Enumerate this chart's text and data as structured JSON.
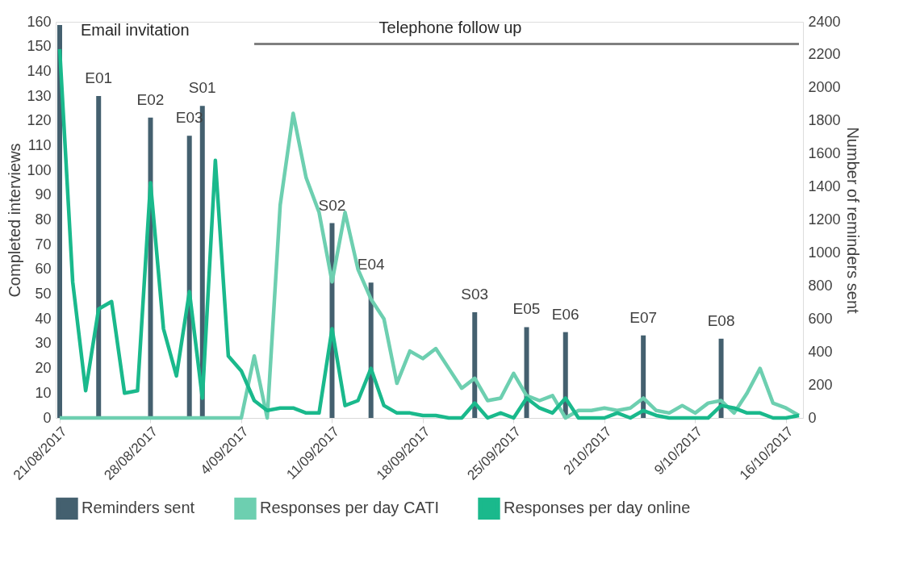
{
  "chart_data": {
    "type": "line",
    "x": [
      "2017-08-21",
      "2017-08-22",
      "2017-08-23",
      "2017-08-24",
      "2017-08-25",
      "2017-08-26",
      "2017-08-27",
      "2017-08-28",
      "2017-08-29",
      "2017-08-30",
      "2017-08-31",
      "2017-09-01",
      "2017-09-02",
      "2017-09-03",
      "2017-09-04",
      "2017-09-05",
      "2017-09-06",
      "2017-09-07",
      "2017-09-08",
      "2017-09-09",
      "2017-09-10",
      "2017-09-11",
      "2017-09-12",
      "2017-09-13",
      "2017-09-14",
      "2017-09-15",
      "2017-09-16",
      "2017-09-17",
      "2017-09-18",
      "2017-09-19",
      "2017-09-20",
      "2017-09-21",
      "2017-09-22",
      "2017-09-23",
      "2017-09-24",
      "2017-09-25",
      "2017-09-26",
      "2017-09-27",
      "2017-09-28",
      "2017-09-29",
      "2017-09-30",
      "2017-10-01",
      "2017-10-02",
      "2017-10-03",
      "2017-10-04",
      "2017-10-05",
      "2017-10-06",
      "2017-10-07",
      "2017-10-08",
      "2017-10-09",
      "2017-10-10",
      "2017-10-11",
      "2017-10-12",
      "2017-10-13",
      "2017-10-14",
      "2017-10-15",
      "2017-10-16",
      "2017-10-17"
    ],
    "series": [
      {
        "name": "Reminders sent",
        "type": "bar",
        "axis": "y2",
        "color": "#44606f",
        "values": [
          2380,
          null,
          null,
          1950,
          null,
          null,
          null,
          1820,
          null,
          null,
          1710,
          1890,
          null,
          null,
          null,
          null,
          null,
          null,
          null,
          null,
          null,
          1180,
          null,
          null,
          820,
          null,
          null,
          null,
          null,
          null,
          null,
          null,
          640,
          null,
          null,
          null,
          550,
          null,
          null,
          520,
          null,
          null,
          null,
          null,
          null,
          500,
          null,
          null,
          null,
          null,
          null,
          480,
          null,
          null,
          null,
          null,
          null,
          null
        ],
        "value_labels": [
          null,
          null,
          null,
          "E01",
          null,
          null,
          null,
          "E02",
          null,
          null,
          "E03",
          "S01",
          null,
          null,
          null,
          null,
          null,
          null,
          null,
          null,
          null,
          "S02",
          null,
          null,
          "E04",
          null,
          null,
          null,
          null,
          null,
          null,
          null,
          "S03",
          null,
          null,
          null,
          "E05",
          null,
          null,
          "E06",
          null,
          null,
          null,
          null,
          null,
          "E07",
          null,
          null,
          null,
          null,
          null,
          "E08",
          null,
          null,
          null,
          null,
          null,
          null
        ]
      },
      {
        "name": "Responses per day CATI",
        "type": "line",
        "color": "#6dcfb0",
        "values": [
          0,
          0,
          0,
          0,
          0,
          0,
          0,
          0,
          0,
          0,
          0,
          0,
          0,
          0,
          0,
          25,
          0,
          86,
          123,
          97,
          83,
          55,
          83,
          60,
          48,
          40,
          14,
          27,
          24,
          28,
          20,
          12,
          16,
          7,
          8,
          18,
          9,
          7,
          9,
          0,
          3,
          3,
          4,
          3,
          4,
          8,
          3,
          2,
          5,
          2,
          6,
          7,
          2,
          10,
          20,
          6,
          4,
          1
        ]
      },
      {
        "name": "Responses per day online",
        "type": "line",
        "color": "#1ab98c",
        "values": [
          149,
          55,
          11,
          44,
          47,
          10,
          11,
          95,
          36,
          17,
          51,
          8,
          104,
          25,
          19,
          7,
          3,
          4,
          4,
          2,
          2,
          36,
          5,
          7,
          20,
          5,
          2,
          2,
          1,
          1,
          0,
          0,
          6,
          0,
          2,
          0,
          8,
          4,
          2,
          8,
          0,
          0,
          0,
          2,
          0,
          3,
          1,
          0,
          0,
          0,
          0,
          5,
          4,
          2,
          2,
          0,
          0,
          1
        ]
      },
      {
        "color": "#7f7f7f",
        "x": [
          "2017-09-05",
          "2017-10-17"
        ],
        "values": [
          151,
          151
        ]
      }
    ],
    "ylabel": "Completed interviews",
    "y2label": "Number of reminders sent",
    "ylim": [
      0,
      160
    ],
    "yticks": [
      0,
      10,
      20,
      30,
      40,
      50,
      60,
      70,
      80,
      90,
      100,
      110,
      120,
      130,
      140,
      150,
      160
    ],
    "y2lim": [
      0,
      2400
    ],
    "y2ticks": [
      0,
      200,
      400,
      600,
      800,
      1000,
      1200,
      1400,
      1600,
      1800,
      2000,
      2200,
      2400
    ],
    "xlim": [
      "2017-08-21",
      "2017-10-17"
    ],
    "xticks": [
      {
        "value": "2017-08-21",
        "label": "21/08/2017"
      },
      {
        "value": "2017-08-28",
        "label": "28/08/2017"
      },
      {
        "value": "2017-09-04",
        "label": "4/09/2017"
      },
      {
        "value": "2017-09-11",
        "label": "11/09/2017"
      },
      {
        "value": "2017-09-18",
        "label": "18/09/2017"
      },
      {
        "value": "2017-09-25",
        "label": "25/09/2017"
      },
      {
        "value": "2017-10-02",
        "label": "2/10/2017"
      },
      {
        "value": "2017-10-09",
        "label": "9/10/2017"
      },
      {
        "value": "2017-10-16",
        "label": "16/10/2017"
      }
    ],
    "annotations": [
      {
        "text": "Email invitation",
        "x": "2017-08-21",
        "y": 150
      },
      {
        "text": "Telephone follow up",
        "x": "2017-09-13",
        "y": 151
      }
    ],
    "grid": false,
    "legend": "bottom",
    "marker": "none",
    "line_style": "solid"
  }
}
